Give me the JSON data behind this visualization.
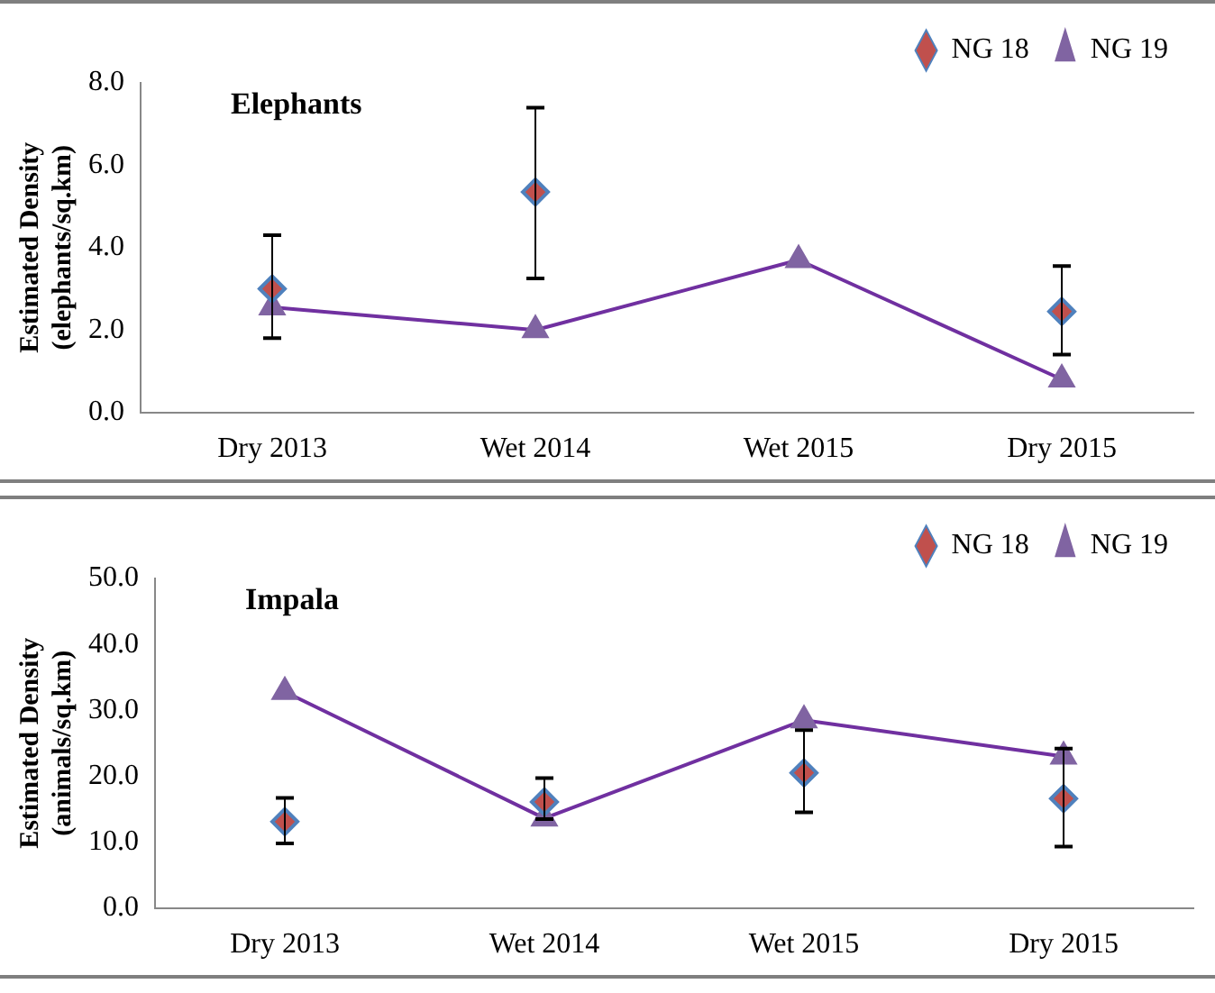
{
  "chart_data": [
    {
      "type": "line",
      "title": "Elephants",
      "ylabel": "Estimated Density\n(elephants/sq.km)",
      "categories": [
        "Dry 2013",
        "Wet 2014",
        "Wet 2015",
        "Dry 2015"
      ],
      "ylim": [
        0,
        8
      ],
      "yticks": [
        {
          "value": 0,
          "label": "0.0"
        },
        {
          "value": 2,
          "label": "2.0"
        },
        {
          "value": 4,
          "label": "4.0"
        },
        {
          "value": 6,
          "label": "6.0"
        },
        {
          "value": 8,
          "label": "8.0"
        }
      ],
      "grid": false,
      "legend": "top right",
      "series": [
        {
          "name": "NG 18",
          "type": "scatter",
          "color": "#c0504d",
          "marker": "diamond",
          "values": [
            3.0,
            5.35,
            null,
            2.45
          ],
          "errors": [
            [
              1.8,
              4.3
            ],
            [
              3.25,
              7.4
            ],
            null,
            [
              1.4,
              3.55
            ]
          ]
        },
        {
          "name": "NG 19",
          "type": "line",
          "color": "#7030a0",
          "marker": "triangle",
          "values": [
            2.55,
            2.0,
            3.7,
            0.8
          ]
        }
      ]
    },
    {
      "type": "line",
      "title": "Impala",
      "ylabel": "Estimated Density\n(animals/sq.km)",
      "categories": [
        "Dry 2013",
        "Wet 2014",
        "Wet 2015",
        "Dry 2015"
      ],
      "ylim": [
        0,
        50
      ],
      "yticks": [
        {
          "value": 0,
          "label": "0.0"
        },
        {
          "value": 10,
          "label": "10.0"
        },
        {
          "value": 20,
          "label": "20.0"
        },
        {
          "value": 30,
          "label": "30.0"
        },
        {
          "value": 40,
          "label": "40.0"
        },
        {
          "value": 50,
          "label": "50.0"
        }
      ],
      "grid": false,
      "legend": "top right",
      "series": [
        {
          "name": "NG 18",
          "type": "scatter",
          "color": "#c0504d",
          "marker": "diamond",
          "values": [
            13.1,
            16.1,
            20.5,
            16.6
          ],
          "errors": [
            [
              9.8,
              16.7
            ],
            [
              13.5,
              19.7
            ],
            [
              14.5,
              27
            ],
            [
              9.3,
              24.2
            ]
          ]
        },
        {
          "name": "NG 19",
          "type": "line",
          "color": "#7030a0",
          "marker": "triangle",
          "values": [
            32.8,
            13.6,
            28.5,
            23.0
          ]
        }
      ]
    }
  ]
}
